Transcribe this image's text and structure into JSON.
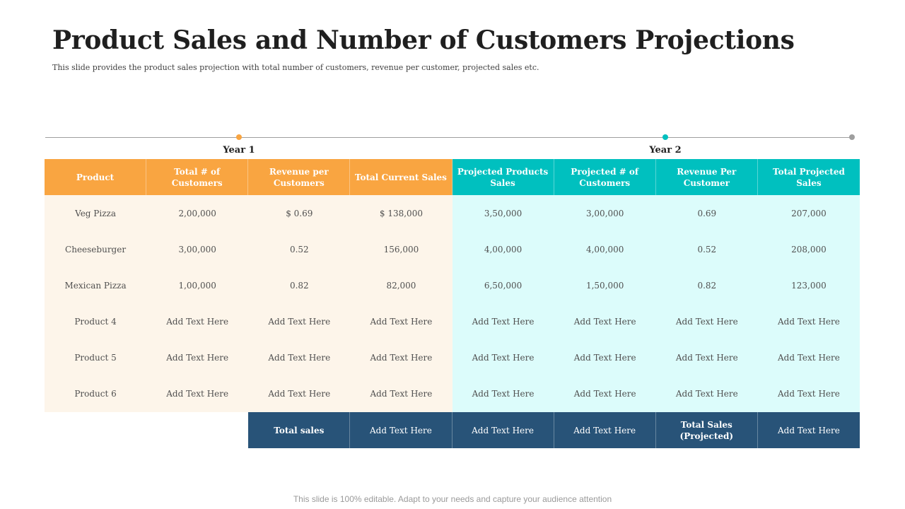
{
  "title": "Product Sales and Number of Customers Projections",
  "subtitle": "This slide provides the product sales projection with total number  of customers, revenue per customer,  projected  sales etc.",
  "colors": {
    "orange": "#f9a541",
    "teal": "#00c0bf",
    "navy": "#285378",
    "cream": "#fdf5ea",
    "light_cyan": "#dcfcfb",
    "timeline": "#9e9e9e"
  },
  "timeline": {
    "year1": "Year 1",
    "year2": "Year 2"
  },
  "table": {
    "headers": [
      "Product",
      "Total # of Customers",
      "Revenue per Customers",
      "Total Current Sales",
      "Projected Products Sales",
      "Projected # of Customers",
      "Revenue Per Customer",
      "Total Projected Sales"
    ],
    "rows": [
      [
        "Veg Pizza",
        "2,00,000",
        "$ 0.69",
        "$ 138,000",
        "3,50,000",
        "3,00,000",
        "0.69",
        "207,000"
      ],
      [
        "Cheeseburger",
        "3,00,000",
        "0.52",
        "156,000",
        "4,00,000",
        "4,00,000",
        "0.52",
        "208,000"
      ],
      [
        "Mexican Pizza",
        "1,00,000",
        "0.82",
        "82,000",
        "6,50,000",
        "1,50,000",
        "0.82",
        "123,000"
      ],
      [
        "Product  4",
        "Add Text Here",
        "Add Text Here",
        "Add Text Here",
        "Add Text Here",
        "Add Text Here",
        "Add Text Here",
        "Add Text Here"
      ],
      [
        "Product  5",
        "Add Text Here",
        "Add Text Here",
        "Add Text Here",
        "Add Text Here",
        "Add Text Here",
        "Add Text Here",
        "Add Text Here"
      ],
      [
        "Product  6",
        "Add Text Here",
        "Add Text Here",
        "Add Text Here",
        "Add Text Here",
        "Add Text Here",
        "Add Text Here",
        "Add Text Here"
      ]
    ],
    "footer": [
      "Total sales",
      "Add Text Here",
      "Add Text Here",
      "Add Text Here",
      "Total Sales (Projected)",
      "Add Text Here"
    ]
  },
  "bottom_note": "This slide is 100% editable. Adapt to your needs and capture your audience attention"
}
